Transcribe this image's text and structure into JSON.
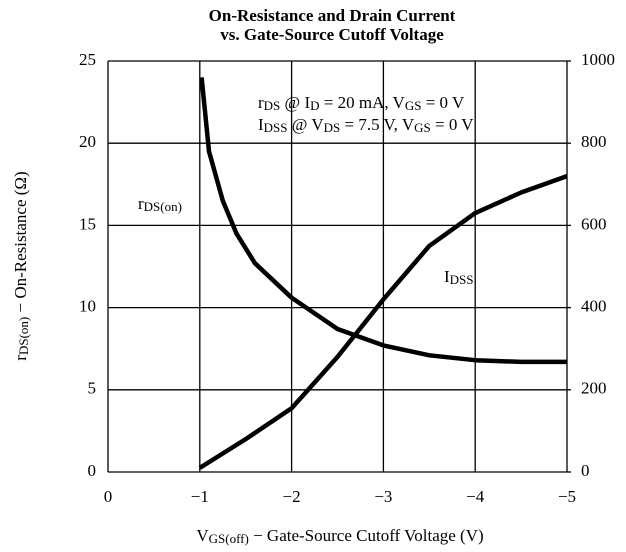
{
  "chart_data": {
    "type": "line",
    "title": [
      "On-Resistance and Drain Current",
      "vs. Gate-Source Cutoff Voltage"
    ],
    "x_label": [
      "V",
      "GS(off)",
      " − Gate-Source Cutoff Voltage (V)"
    ],
    "y_label": [
      "r",
      "DS(on)",
      " − On-Resistance (Ω)"
    ],
    "annotations": [
      [
        "r",
        "DS",
        " @ I",
        "D",
        " = 20 mA, V",
        "GS",
        " = 0 V"
      ],
      [
        "I",
        "DSS",
        " @ V",
        "DS",
        " = 7.5 V, V",
        "GS",
        " = 0 V"
      ]
    ],
    "xlim": [
      0,
      -5
    ],
    "xticks": [
      0,
      {
        "value": -1,
        "label": "−1"
      },
      {
        "value": -2,
        "label": "−2"
      },
      {
        "value": -3,
        "label": "−3"
      },
      {
        "value": -4,
        "label": "−4"
      },
      {
        "value": -5,
        "label": "−5"
      }
    ],
    "ylim": [
      0,
      25
    ],
    "yticks": [
      0,
      5,
      10,
      15,
      20,
      25
    ],
    "y2lim": [
      0,
      1000
    ],
    "y2ticks": [
      0,
      200,
      400,
      600,
      800,
      1000
    ],
    "grid": true,
    "series": [
      {
        "label": [
          "r",
          "DS(on)"
        ],
        "color": "#000000",
        "x": [
          -1.02,
          -1.1,
          -1.25,
          -1.4,
          -1.6,
          -2,
          -2.5,
          -3,
          -3.5,
          -4,
          -4.5,
          -5
        ],
        "values": [
          24,
          19.5,
          16.5,
          14.5,
          12.7,
          10.6,
          8.7,
          7.7,
          7.1,
          6.8,
          6.7,
          6.7
        ]
      },
      {
        "label": [
          "I",
          "DSS"
        ],
        "color": "#000000",
        "axis": "y2",
        "x": [
          -1,
          -1.5,
          -2,
          -2.5,
          -3,
          -3.5,
          -4,
          -4.5,
          -5
        ],
        "values": [
          10,
          80,
          155,
          280,
          420,
          550,
          630,
          680,
          720
        ]
      }
    ]
  }
}
